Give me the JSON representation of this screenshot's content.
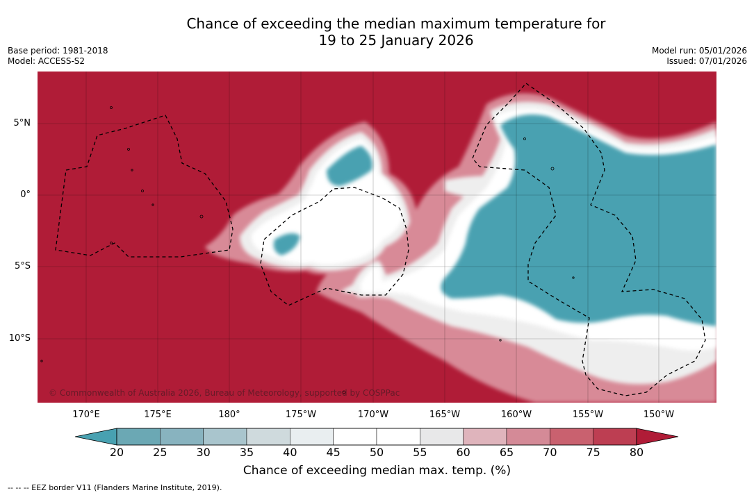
{
  "title": {
    "line1": "Chance of exceeding the median maximum temperature for",
    "line2": "19 to 25 January 2026"
  },
  "meta": {
    "base_period": "Base period: 1981-2018",
    "model": "Model: ACCESS-S2",
    "model_run": "Model run: 05/01/2026",
    "issued": "Issued: 07/01/2026"
  },
  "map": {
    "copyright": "© Commonwealth of Australia 2026, Bureau of Meteorology, supported by COSPPac",
    "colors": {
      "hot": "#b01c37",
      "cool": "#48a1b1",
      "white": "#ffffff"
    },
    "lat_ticks": [
      "5°N",
      "0°",
      "5°S",
      "10°S"
    ],
    "lon_ticks": [
      "170°E",
      "175°E",
      "180°",
      "175°W",
      "170°W",
      "165°W",
      "160°W",
      "155°W",
      "150°W"
    ]
  },
  "colorbar": {
    "title": "Chance of exceeding median max. temp. (%)",
    "labels": [
      "20",
      "25",
      "30",
      "35",
      "40",
      "45",
      "50",
      "55",
      "60",
      "65",
      "70",
      "75",
      "80"
    ],
    "colors": [
      "#6ba8b4",
      "#88b3bf",
      "#a9c5cd",
      "#cfdadd",
      "#e9eef0",
      "#ffffff",
      "#ffffff",
      "#e8e8e9",
      "#dfb4bc",
      "#d48a97",
      "#c9616f",
      "#bd3e52"
    ],
    "low_extend_color": "#48a1b1",
    "high_extend_color": "#b01c37"
  },
  "footer": {
    "legend_text": "--  --  -- EEZ border V11 (Flanders Marine Institute, 2019)."
  }
}
